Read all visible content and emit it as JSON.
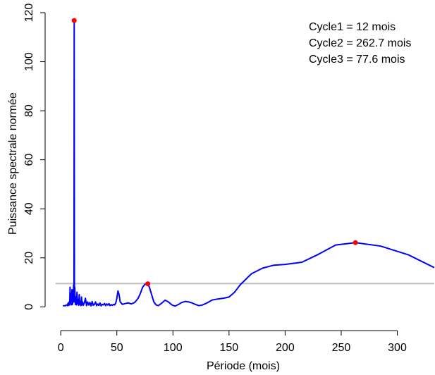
{
  "chart_data": {
    "type": "line",
    "title": "",
    "xlabel": "Période (mois)",
    "ylabel": "Puissance spectrale normée",
    "xlim": [
      -4.5,
      333
    ],
    "ylim": [
      -4.8,
      120
    ],
    "xticks": [
      "0",
      "50",
      "100",
      "150",
      "200",
      "250",
      "300"
    ],
    "yticks": [
      "0",
      "20",
      "40",
      "60",
      "80",
      "100",
      "120"
    ],
    "grid": false,
    "colors": {
      "line": "#0000ff",
      "peaks": "#ff0000",
      "threshold": "#bebebe"
    },
    "threshold": 9.5,
    "series": [
      {
        "x": [
          2,
          3,
          4,
          5,
          6,
          6.5,
          7,
          7.5,
          8,
          8.3,
          8.6,
          9,
          9.5,
          10,
          10.5,
          11,
          11.5,
          11.8,
          12,
          12.2,
          12.5,
          13,
          13.5,
          14,
          14.5,
          15,
          15.5,
          16,
          16.5,
          17,
          17.5,
          18,
          18.5,
          19,
          19.5,
          20,
          21,
          22,
          23,
          24,
          25,
          26,
          27,
          28,
          29,
          30,
          31,
          32,
          33,
          34,
          35,
          36,
          37,
          38,
          39,
          40,
          41,
          42,
          43,
          44,
          45,
          46,
          47,
          48,
          49,
          50,
          51,
          52,
          53,
          55,
          57,
          60,
          63,
          66,
          69,
          71,
          73,
          75,
          77.6,
          79,
          81,
          83,
          85,
          87,
          90,
          93,
          96,
          99,
          102,
          105,
          108,
          111,
          114,
          117,
          120,
          123,
          126,
          130,
          135,
          140,
          145,
          150,
          155,
          160,
          170,
          180,
          190,
          200,
          215,
          230,
          245,
          262.7,
          285,
          310,
          333
        ],
        "y": [
          0.3,
          0.5,
          0.4,
          0.8,
          0.5,
          1.5,
          0.6,
          2.0,
          0.8,
          8.0,
          1.5,
          5.5,
          0.8,
          7.0,
          1.0,
          3.5,
          9.0,
          2.0,
          116.8,
          2.0,
          8.0,
          1.0,
          4.0,
          0.8,
          6.0,
          1.2,
          3.0,
          0.6,
          5.0,
          1.0,
          2.2,
          0.5,
          4.0,
          0.8,
          2.0,
          0.6,
          1.5,
          3.5,
          0.5,
          2.0,
          0.7,
          1.8,
          0.4,
          2.2,
          0.6,
          1.0,
          2.0,
          0.5,
          1.2,
          0.6,
          1.6,
          0.4,
          1.0,
          0.8,
          1.4,
          0.5,
          1.2,
          0.7,
          1.3,
          0.5,
          0.9,
          0.6,
          1.0,
          0.8,
          1.5,
          3.5,
          6.5,
          5.0,
          2.0,
          1.0,
          1.3,
          1.6,
          1.2,
          1.8,
          3.5,
          5.5,
          8.0,
          9.2,
          9.4,
          8.0,
          5.0,
          2.0,
          0.8,
          0.5,
          1.5,
          2.7,
          2.0,
          0.8,
          0.3,
          1.0,
          1.8,
          2.2,
          2.0,
          1.6,
          1.0,
          0.5,
          0.7,
          1.5,
          2.8,
          3.2,
          3.5,
          4.0,
          6.0,
          9.0,
          13.5,
          15.8,
          17.0,
          17.3,
          18.2,
          21.5,
          25.2,
          26.2,
          24.8,
          21.2,
          16.0
        ]
      }
    ],
    "peaks": [
      {
        "x": 12,
        "y": 116.8
      },
      {
        "x": 262.7,
        "y": 26.2
      },
      {
        "x": 77.6,
        "y": 9.4
      }
    ],
    "legend": [
      "Cycle1 = 12 mois",
      "Cycle2 = 262.7 mois",
      "Cycle3 = 77.6 mois"
    ],
    "legend_position": "top-right"
  }
}
